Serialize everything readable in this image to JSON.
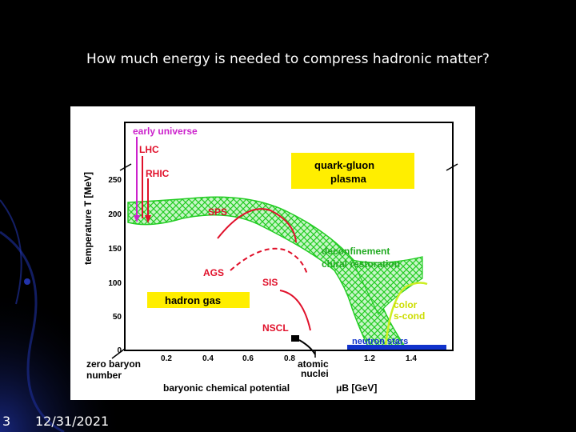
{
  "slide": {
    "title": "How much  energy is needed to compress hadronic matter?",
    "number": "3",
    "date": "12/31/2021"
  },
  "colors": {
    "background": "#000000",
    "accent_blue": "#1a2a8a",
    "phase_band": "#22cc22",
    "label_red": "#e0102a",
    "early_universe": "#cc22cc",
    "yellow_box": "#ffee00",
    "neutron_bar": "#1133cc",
    "color_sc_line": "#ccee22"
  },
  "figure": {
    "ylabel": "temperature T [MeV]",
    "xlabel": "baryonic chemical potential",
    "xunit": "μB [GeV]",
    "yticks": [
      "0",
      "50",
      "100",
      "150",
      "200",
      "250"
    ],
    "xticks": [
      "0.2",
      "0.4",
      "0.6",
      "0.8",
      "1.2",
      "1.4"
    ],
    "labels": {
      "early_universe": "early universe",
      "lhc": "LHC",
      "rhic": "RHIC",
      "qgp_line1": "quark-gluon",
      "qgp_line2": "plasma",
      "sps": "SPS",
      "ags": "AGS",
      "sis": "SIS",
      "nscl": "NSCL",
      "deconfinement": "deconfinement",
      "chiral": "chiral restoration",
      "hadron_gas": "hadron gas",
      "color": "color",
      "scond": "s-cond",
      "neutron_stars": "neutron stars",
      "zero_baryon_1": "zero baryon",
      "zero_baryon_2": "number",
      "atomic_1": "atomic",
      "atomic_2": "nuclei"
    }
  }
}
